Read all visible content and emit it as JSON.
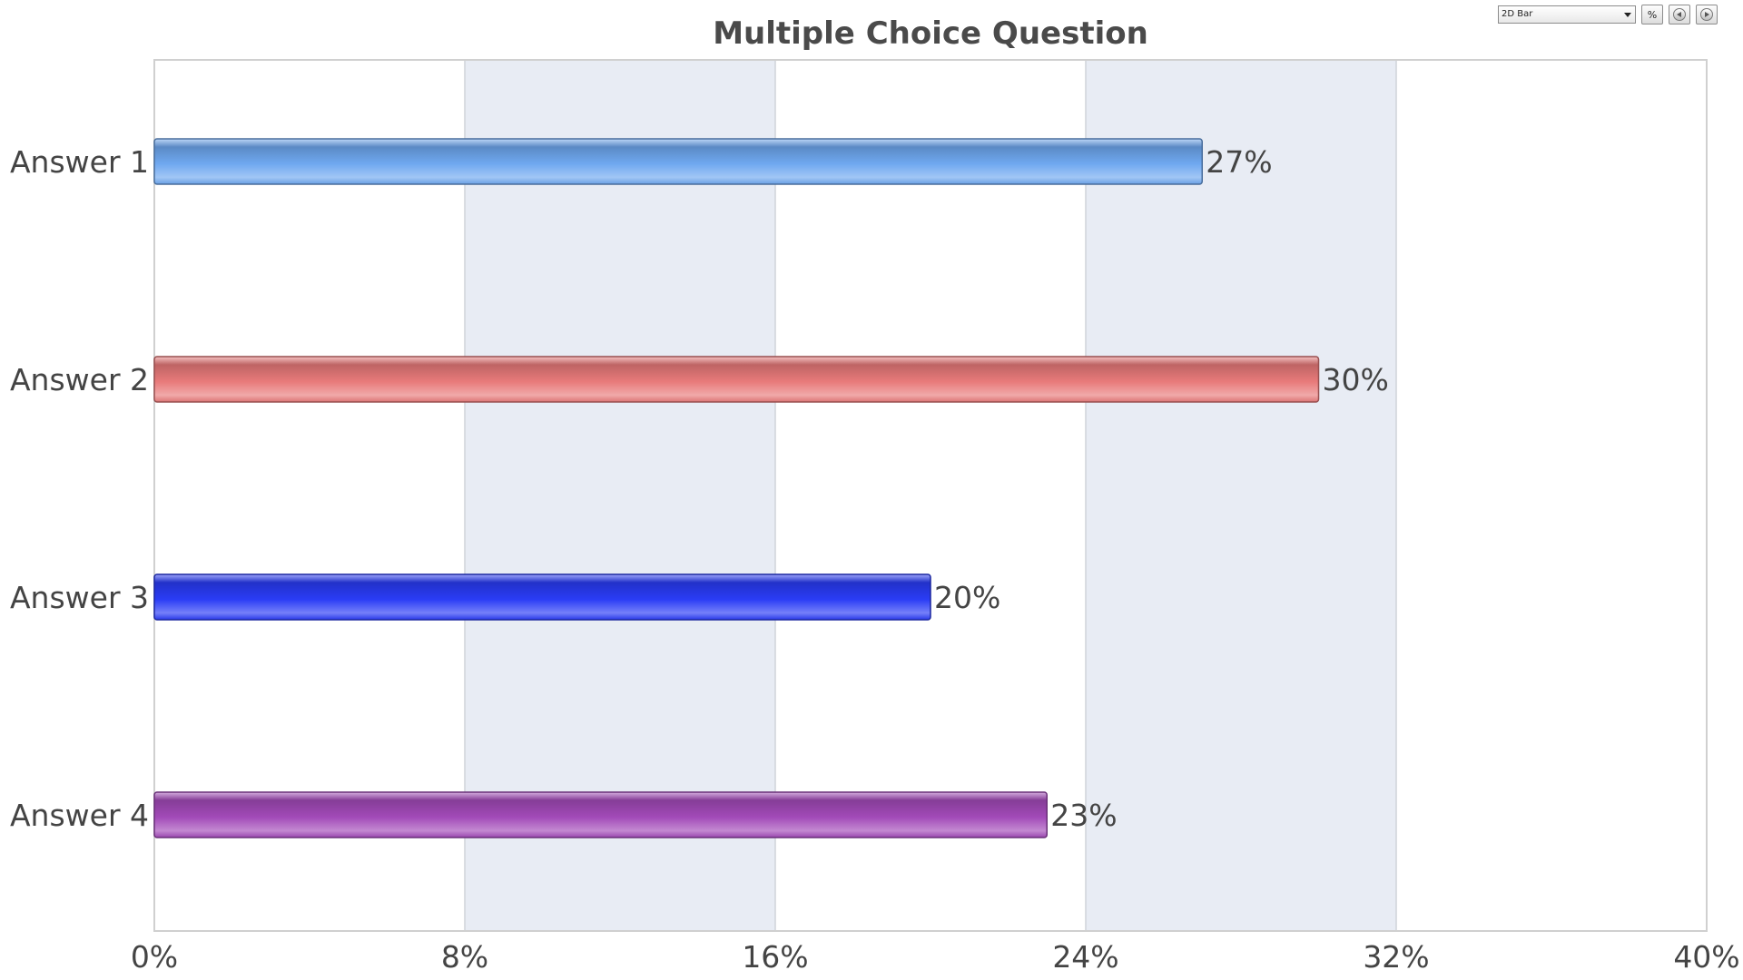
{
  "toolbar": {
    "chart_type_selected": "2D Bar",
    "percent_label": "%",
    "prev_icon": "circle-arrow-left-icon",
    "next_icon": "circle-arrow-right-icon"
  },
  "chart_data": {
    "type": "bar",
    "orientation": "horizontal",
    "title": "Multiple Choice Question",
    "categories": [
      "Answer 1",
      "Answer 2",
      "Answer 3",
      "Answer 4"
    ],
    "values": [
      27,
      30,
      20,
      23
    ],
    "value_labels": [
      "27%",
      "30%",
      "20%",
      "23%"
    ],
    "colors": [
      "#6fa8f0",
      "#e87a7a",
      "#2a3cf5",
      "#a24ab8"
    ],
    "xlim": [
      0,
      40
    ],
    "xticks": [
      0,
      8,
      16,
      24,
      32,
      40
    ],
    "xtick_labels": [
      "0%",
      "8%",
      "16%",
      "24%",
      "32%",
      "40%"
    ],
    "xlabel": "",
    "ylabel": "",
    "grid": "alternating vertical bands",
    "band_color": "#e8ecf4",
    "legend": "none"
  }
}
